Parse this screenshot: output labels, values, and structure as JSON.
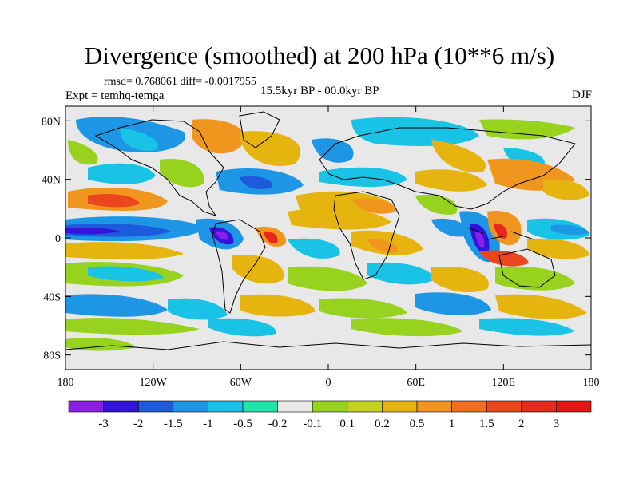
{
  "header": {
    "title": "Divergence (smoothed) at 200 hPa (10**6 m/s)",
    "stats": "rmsd= 0.768061 diff= -0.0017955",
    "experiment": "Expt = temhq-temga",
    "period": "15.5kyr BP - 00.0kyr BP",
    "season": "DJF"
  },
  "chart_data": {
    "type": "heatmap",
    "title": "Divergence (smoothed) at 200 hPa (10**6 m/s)",
    "projection": "cylindrical equidistant",
    "xlim": [
      -180,
      180
    ],
    "ylim": [
      -90,
      90
    ],
    "x_ticks": [
      "180",
      "120W",
      "60W",
      "0",
      "60E",
      "120E",
      "180"
    ],
    "y_ticks": [
      "80N",
      "40N",
      "0",
      "40S",
      "80S"
    ],
    "colorbar": {
      "levels": [
        "-3",
        "-2",
        "-1.5",
        "-1",
        "-0.5",
        "-0.2",
        "-0.1",
        "0.1",
        "0.2",
        "0.5",
        "1",
        "1.5",
        "2",
        "3"
      ],
      "colors": [
        "#8c1ee6",
        "#3214dc",
        "#1e5adc",
        "#1e96e6",
        "#19c3e6",
        "#1ee6aa",
        "#e8e8e8",
        "#96d21e",
        "#c3d21e",
        "#e6b40f",
        "#f0961e",
        "#f06e1e",
        "#eb461e",
        "#e6281e",
        "#e61414"
      ]
    }
  },
  "colors": {
    "background": "#ffffff",
    "neutral": "#e8e8e8",
    "coast": "#000000"
  }
}
